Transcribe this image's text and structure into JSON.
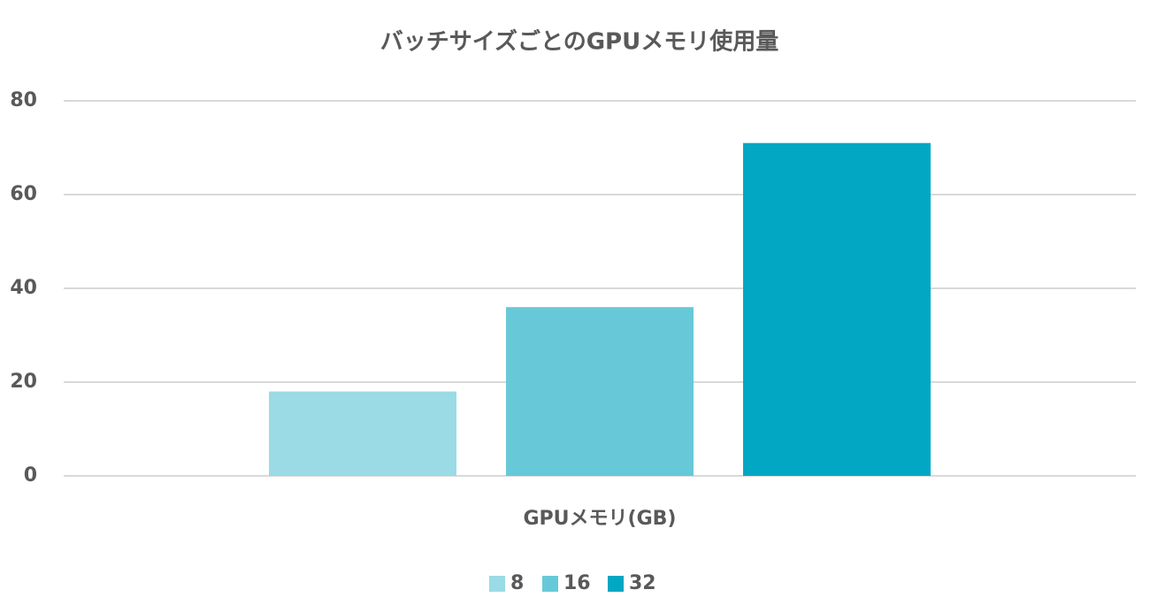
{
  "chart_data": {
    "type": "bar",
    "title": "バッチサイズごとのGPUメモリ使用量",
    "categories": [
      "GPUメモリ(GB)"
    ],
    "series": [
      {
        "name": "8",
        "color": "#9bdbe6",
        "values": [
          18
        ]
      },
      {
        "name": "16",
        "color": "#67c9d8",
        "values": [
          36
        ]
      },
      {
        "name": "32",
        "color": "#02a7c4",
        "values": [
          71
        ]
      }
    ],
    "ylim": [
      0,
      80
    ],
    "yticks": [
      0,
      20,
      40,
      60,
      80
    ],
    "grid": true,
    "legend": "bottom"
  }
}
